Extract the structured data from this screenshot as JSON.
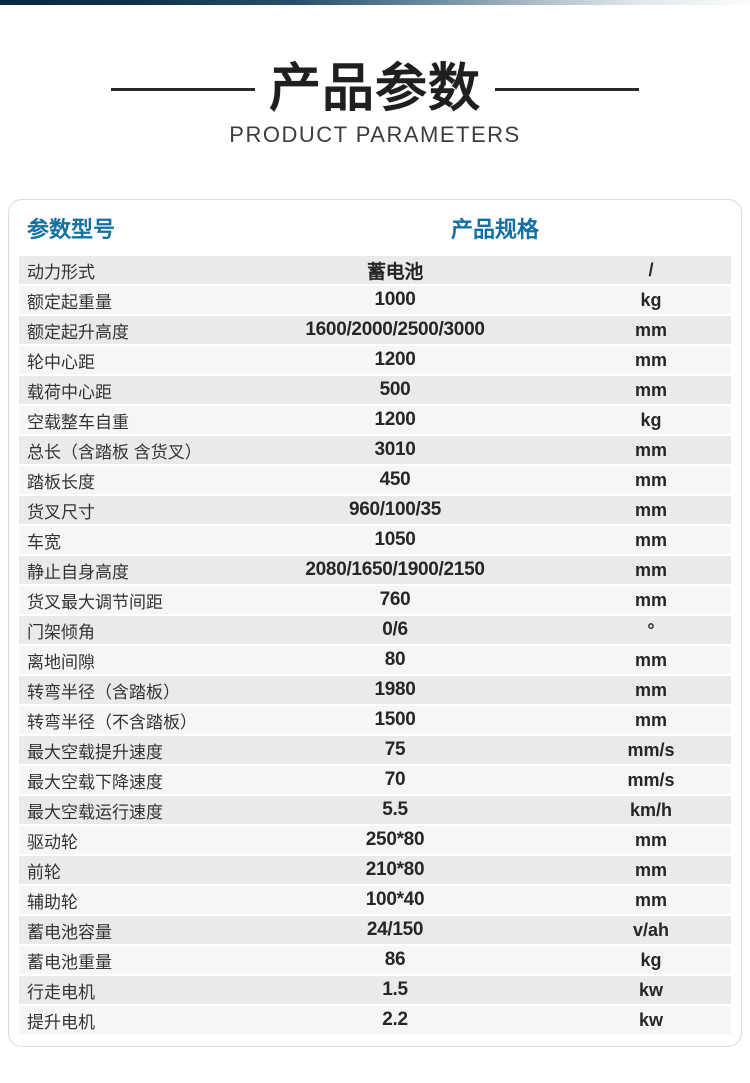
{
  "header": {
    "title_cn": "产品参数",
    "title_en": "PRODUCT PARAMETERS"
  },
  "table": {
    "columns": {
      "param": "参数型号",
      "spec": "产品规格"
    },
    "rows": [
      {
        "label": "动力形式",
        "value": "蓄电池",
        "unit": "/"
      },
      {
        "label": "额定起重量",
        "value": "1000",
        "unit": "kg"
      },
      {
        "label": "额定起升高度",
        "value": "1600/2000/2500/3000",
        "unit": "mm"
      },
      {
        "label": "轮中心距",
        "value": "1200",
        "unit": "mm"
      },
      {
        "label": "载荷中心距",
        "value": "500",
        "unit": "mm"
      },
      {
        "label": "空载整车自重",
        "value": "1200",
        "unit": "kg"
      },
      {
        "label": "总长（含踏板 含货叉）",
        "value": "3010",
        "unit": "mm"
      },
      {
        "label": "踏板长度",
        "value": "450",
        "unit": "mm"
      },
      {
        "label": "货叉尺寸",
        "value": "960/100/35",
        "unit": "mm"
      },
      {
        "label": "车宽",
        "value": "1050",
        "unit": "mm"
      },
      {
        "label": "静止自身高度",
        "value": "2080/1650/1900/2150",
        "unit": "mm"
      },
      {
        "label": "货叉最大调节间距",
        "value": "760",
        "unit": "mm"
      },
      {
        "label": "门架倾角",
        "value": "0/6",
        "unit": "°"
      },
      {
        "label": "离地间隙",
        "value": "80",
        "unit": "mm"
      },
      {
        "label": "转弯半径（含踏板）",
        "value": "1980",
        "unit": "mm"
      },
      {
        "label": "转弯半径（不含踏板）",
        "value": "1500",
        "unit": "mm"
      },
      {
        "label": "最大空载提升速度",
        "value": "75",
        "unit": "mm/s"
      },
      {
        "label": "最大空载下降速度",
        "value": "70",
        "unit": "mm/s"
      },
      {
        "label": "最大空载运行速度",
        "value": "5.5",
        "unit": "km/h"
      },
      {
        "label": "驱动轮",
        "value": "250*80",
        "unit": "mm"
      },
      {
        "label": "前轮",
        "value": "210*80",
        "unit": "mm"
      },
      {
        "label": "辅助轮",
        "value": "100*40",
        "unit": "mm"
      },
      {
        "label": "蓄电池容量",
        "value": "24/150",
        "unit": "v/ah"
      },
      {
        "label": "蓄电池重量",
        "value": "86",
        "unit": "kg"
      },
      {
        "label": "行走电机",
        "value": "1.5",
        "unit": "kw"
      },
      {
        "label": "提升电机",
        "value": "2.2",
        "unit": "kw"
      }
    ]
  },
  "colors": {
    "accent_blue": "#1371a1",
    "topbar_dark": "#0a2840",
    "row_gray": "#eaeaea",
    "row_light": "#f6f6f6",
    "title_text": "#1f1f1f"
  }
}
